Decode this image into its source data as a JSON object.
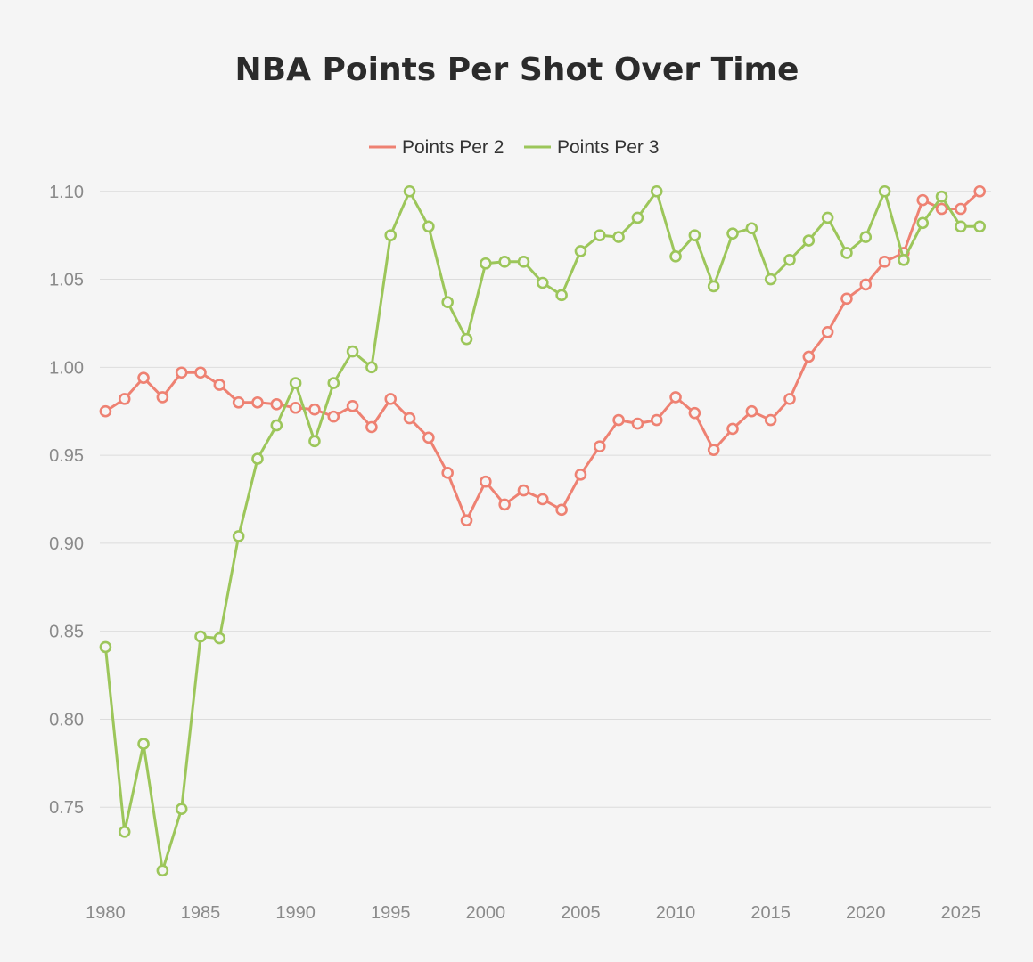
{
  "chart_data": {
    "type": "line",
    "title": "NBA Points Per Shot Over Time",
    "xlabel": "",
    "ylabel": "",
    "x": [
      1980,
      1981,
      1982,
      1983,
      1984,
      1985,
      1986,
      1987,
      1988,
      1989,
      1990,
      1991,
      1992,
      1993,
      1994,
      1995,
      1996,
      1997,
      1998,
      1999,
      2000,
      2001,
      2002,
      2003,
      2004,
      2005,
      2006,
      2007,
      2008,
      2009,
      2010,
      2011,
      2012,
      2013,
      2014,
      2015,
      2016,
      2017,
      2018,
      2019,
      2020,
      2021,
      2022,
      2023,
      2024,
      2025,
      2026
    ],
    "xticks": [
      "1980",
      "1985",
      "1990",
      "1995",
      "2000",
      "2005",
      "2010",
      "2015",
      "2020",
      "2025"
    ],
    "xlim": [
      1979.7,
      2026.6
    ],
    "ylim": [
      0.7,
      1.11
    ],
    "yticks": [
      "0.75",
      "0.80",
      "0.85",
      "0.90",
      "0.95",
      "1.00",
      "1.05",
      "1.10"
    ],
    "grid": true,
    "legend_position": "top-center",
    "series": [
      {
        "name": "Points Per 2",
        "color": "#ee8172",
        "values": [
          0.975,
          0.982,
          0.994,
          0.983,
          0.997,
          0.997,
          0.99,
          0.98,
          0.98,
          0.979,
          0.977,
          0.976,
          0.972,
          0.978,
          0.966,
          0.982,
          0.971,
          0.96,
          0.94,
          0.913,
          0.935,
          0.922,
          0.93,
          0.925,
          0.919,
          0.939,
          0.955,
          0.97,
          0.968,
          0.97,
          0.983,
          0.974,
          0.953,
          0.965,
          0.975,
          0.97,
          0.982,
          1.006,
          1.02,
          1.039,
          1.047,
          1.06,
          1.065,
          1.095,
          1.09,
          1.09,
          1.1
        ]
      },
      {
        "name": "Points Per 3",
        "color": "#9cc65a",
        "values": [
          0.841,
          0.736,
          0.786,
          0.714,
          0.749,
          0.847,
          0.846,
          0.904,
          0.948,
          0.967,
          0.991,
          0.958,
          0.991,
          1.009,
          1.0,
          1.075,
          1.1,
          1.08,
          1.037,
          1.016,
          1.059,
          1.06,
          1.06,
          1.048,
          1.041,
          1.066,
          1.075,
          1.074,
          1.085,
          1.1,
          1.063,
          1.075,
          1.046,
          1.076,
          1.079,
          1.05,
          1.061,
          1.072,
          1.085,
          1.065,
          1.074,
          1.1,
          1.061,
          1.082,
          1.097,
          1.08,
          1.08
        ]
      }
    ]
  }
}
